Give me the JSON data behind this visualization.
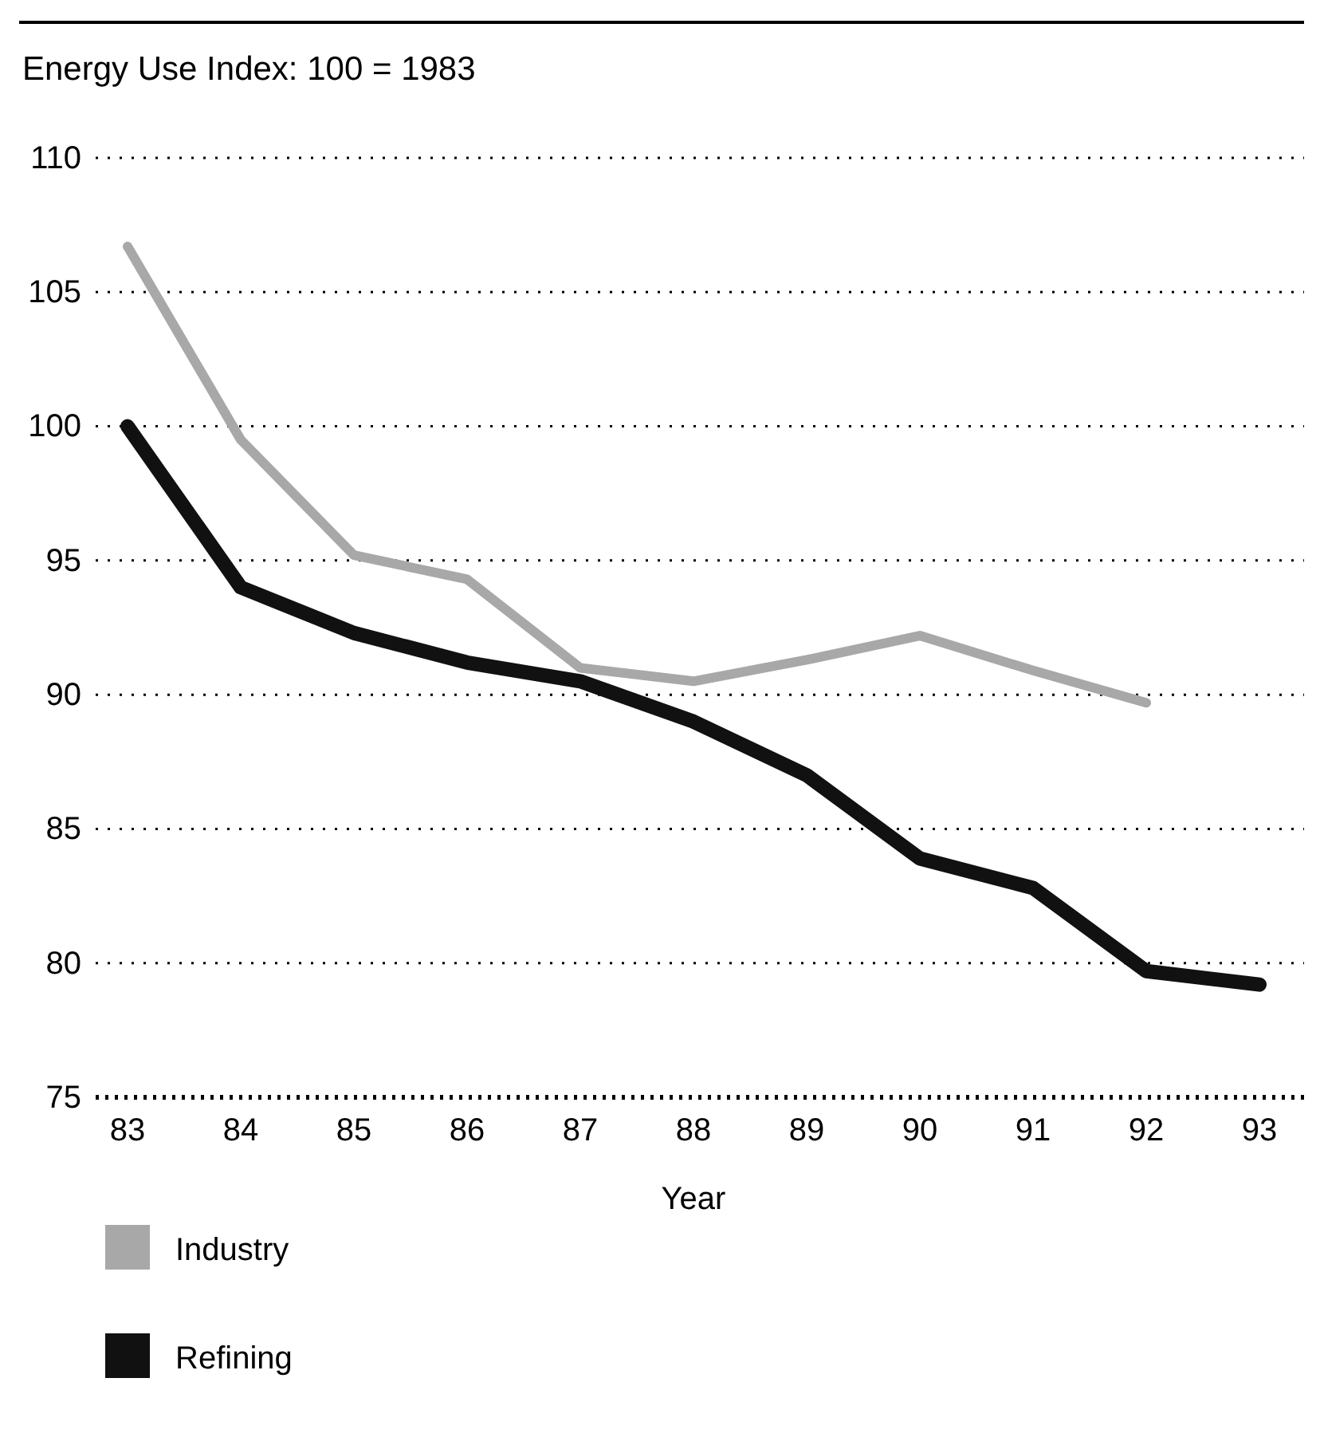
{
  "chart_data": {
    "type": "line",
    "title": "Energy Use Index: 100 = 1983",
    "xlabel": "Year",
    "categories": [
      "83",
      "84",
      "85",
      "86",
      "87",
      "88",
      "89",
      "90",
      "91",
      "92",
      "93"
    ],
    "ylim": [
      75,
      110
    ],
    "yticks": [
      75,
      80,
      85,
      90,
      95,
      100,
      105,
      110
    ],
    "grid": "y",
    "legend": "bottom",
    "marker": "none",
    "line_style": "solid",
    "series": [
      {
        "name": "Industry",
        "color": "#a8a8a8",
        "values": [
          106.7,
          99.5,
          95.2,
          94.3,
          91.0,
          90.5,
          91.3,
          92.2,
          90.9,
          89.7,
          null
        ]
      },
      {
        "name": "Refining",
        "color": "#111111",
        "values": [
          100,
          94,
          92.3,
          91.2,
          90.5,
          89,
          87,
          83.9,
          82.8,
          79.7,
          79.2
        ]
      }
    ]
  }
}
